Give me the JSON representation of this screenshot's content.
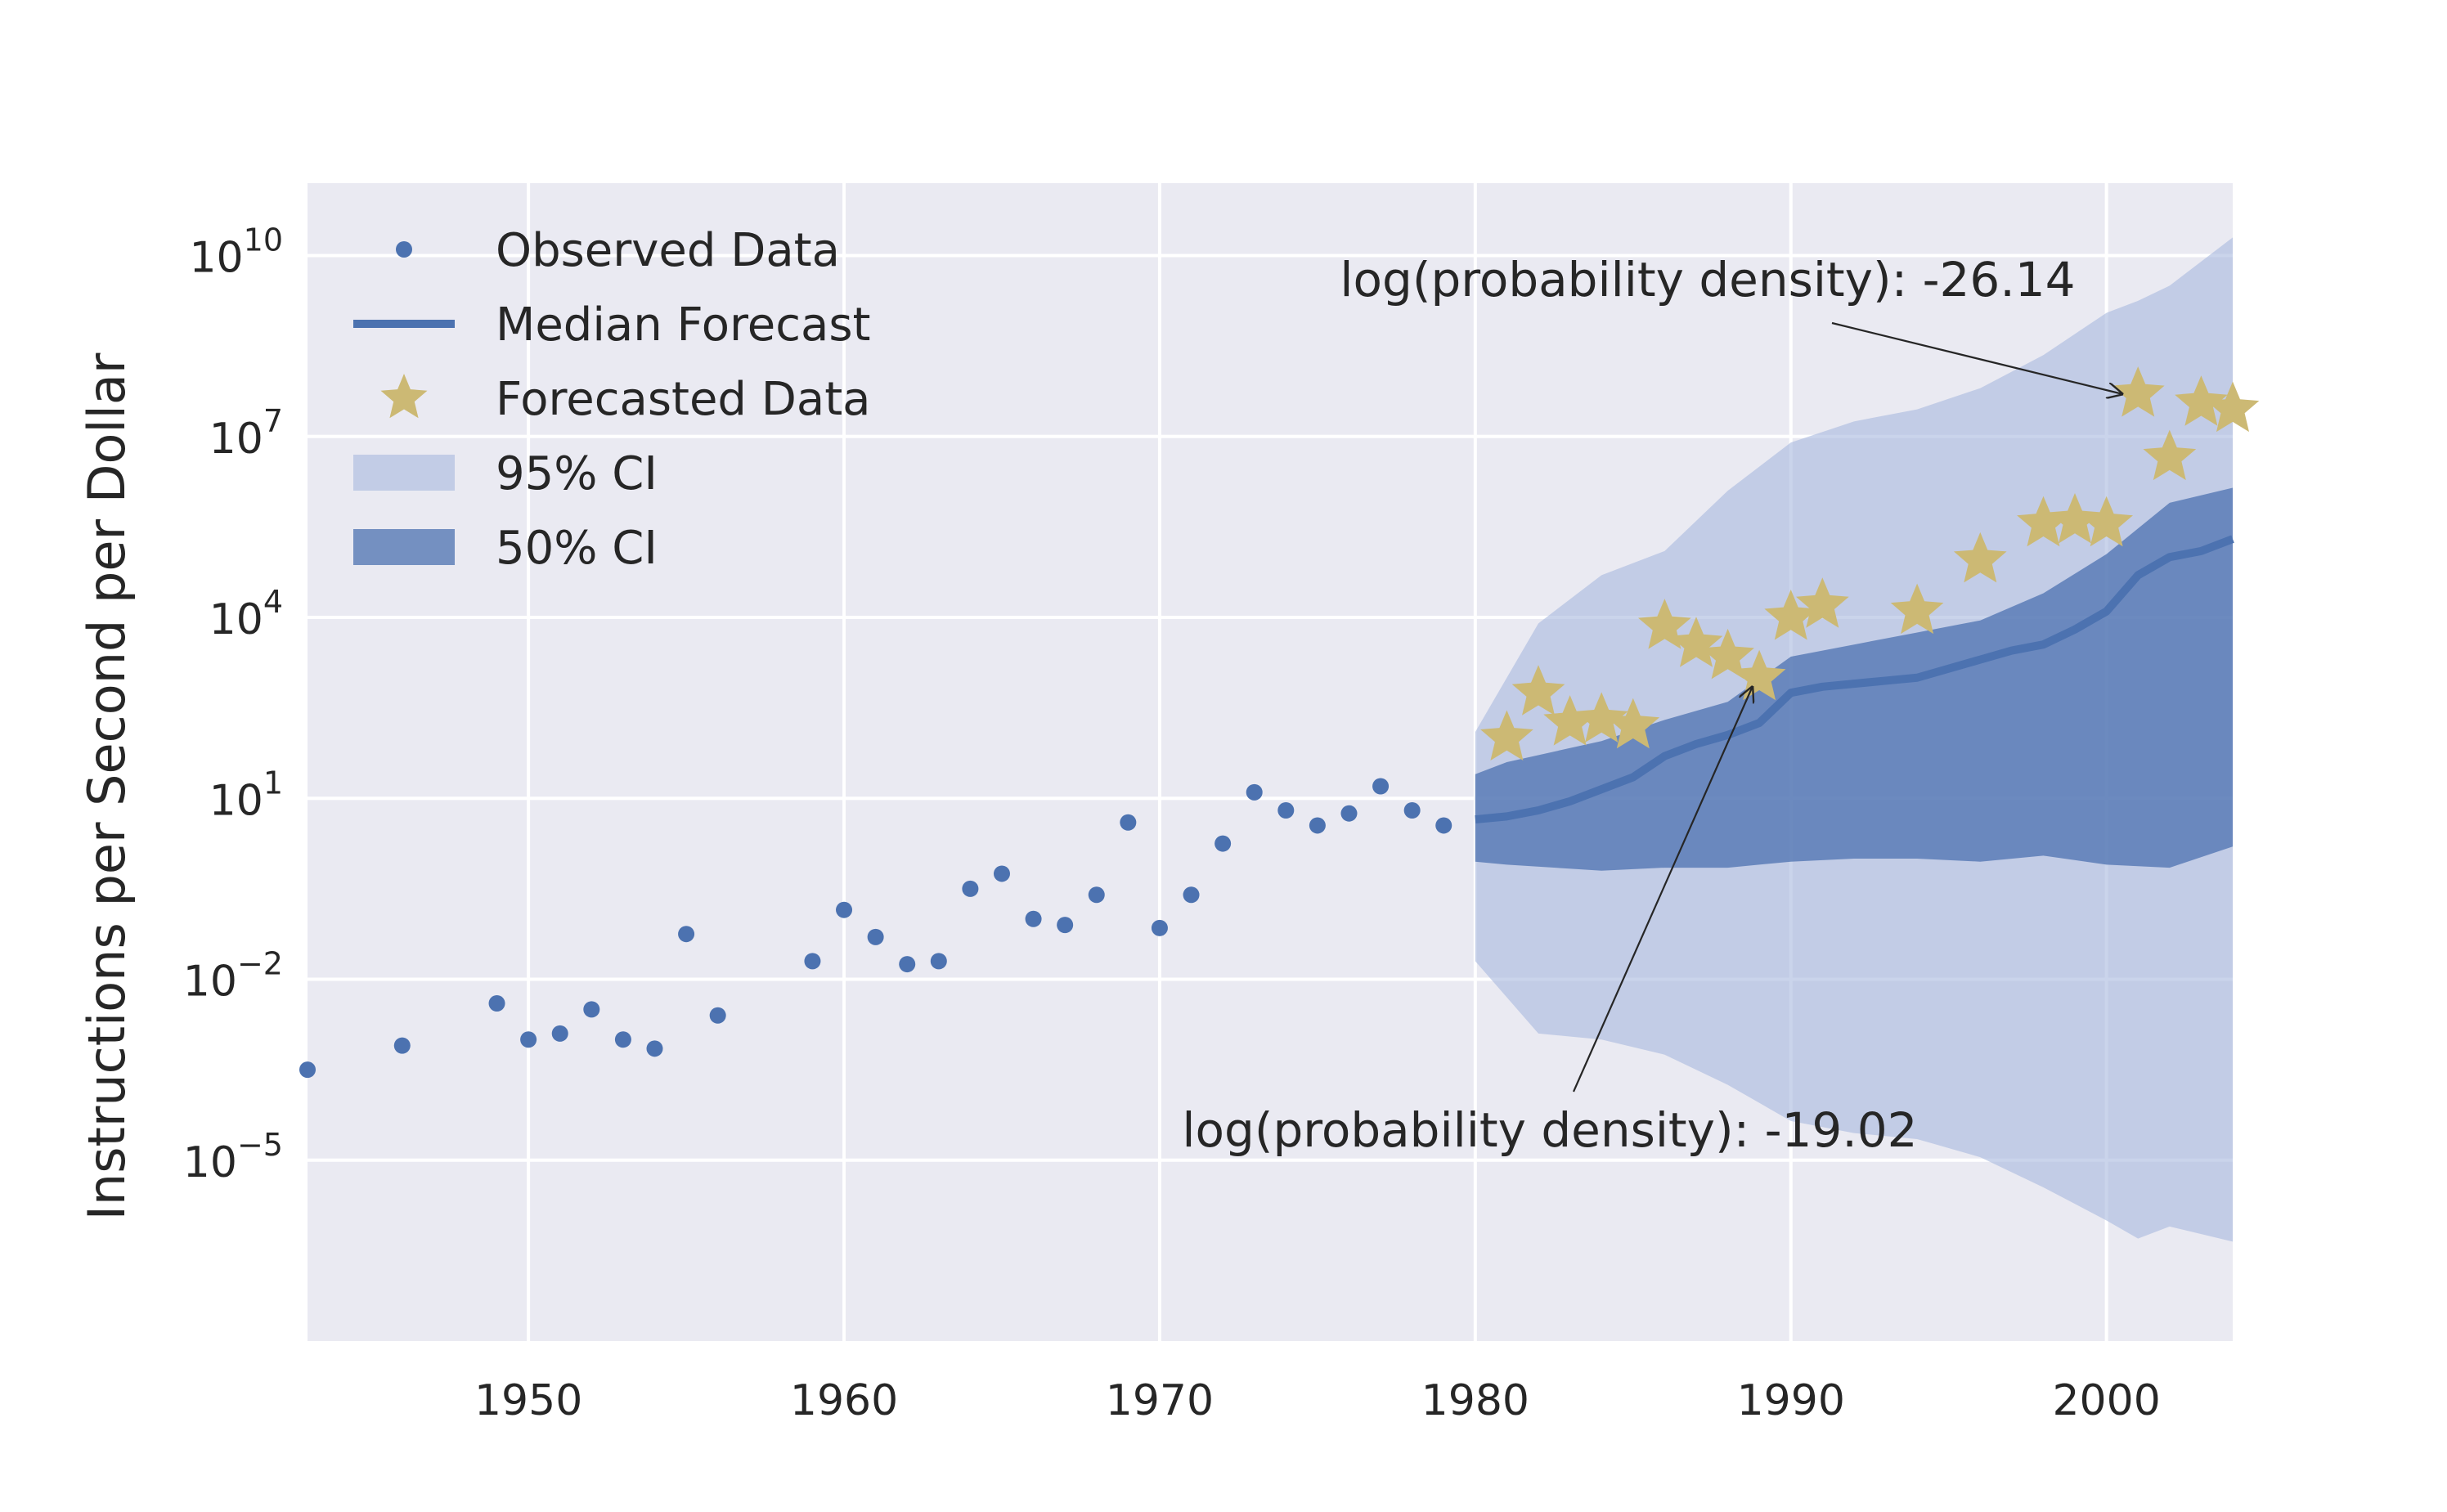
{
  "chart_data": {
    "type": "scatter",
    "ylabel": "Instructions per Second per Dollar",
    "xlabel": "",
    "title": "",
    "xlim": [
      1943,
      2004
    ],
    "yscale": "log",
    "ylim_log10": [
      -8,
      11.2
    ],
    "x_ticks": [
      "1950",
      "1960",
      "1970",
      "1980",
      "1990",
      "2000"
    ],
    "x_tick_values": [
      1950,
      1960,
      1970,
      1980,
      1990,
      2000
    ],
    "y_ticks": [
      {
        "base": "10",
        "exp": "10",
        "value_log10": 10
      },
      {
        "base": "10",
        "exp": "7",
        "value_log10": 7
      },
      {
        "base": "10",
        "exp": "4",
        "value_log10": 4
      },
      {
        "base": "10",
        "exp": "1",
        "value_log10": 1
      },
      {
        "base": "10",
        "exp": "−2",
        "value_log10": -2
      },
      {
        "base": "10",
        "exp": "−5",
        "value_log10": -5
      }
    ],
    "grid": true,
    "legend_position": "top-left",
    "legend": [
      {
        "key": "observed",
        "label": "Observed Data"
      },
      {
        "key": "median",
        "label": "Median Forecast"
      },
      {
        "key": "forecasted",
        "label": "Forecasted Data"
      },
      {
        "key": "ci95",
        "label": "95% CI"
      },
      {
        "key": "ci50",
        "label": "50% CI"
      }
    ],
    "colors": {
      "background": "#eaeaf2",
      "grid": "#ffffff",
      "observed": "#4c72b0",
      "median": "#4c72b0",
      "forecasted": "#ccb974",
      "ci95": "#a7b7dd",
      "ci50": "#4c72b0"
    },
    "observed_log10": [
      [
        1943,
        -3.5
      ],
      [
        1946,
        -3.1
      ],
      [
        1949,
        -2.4
      ],
      [
        1950,
        -3.0
      ],
      [
        1951,
        -2.9
      ],
      [
        1952,
        -2.5
      ],
      [
        1953,
        -3.0
      ],
      [
        1954,
        -3.15
      ],
      [
        1955,
        -1.25
      ],
      [
        1956,
        -2.6
      ],
      [
        1959,
        -1.7
      ],
      [
        1960,
        -0.85
      ],
      [
        1961,
        -1.3
      ],
      [
        1962,
        -1.75
      ],
      [
        1963,
        -1.7
      ],
      [
        1964,
        -0.5
      ],
      [
        1965,
        -0.25
      ],
      [
        1966,
        -1.0
      ],
      [
        1967,
        -1.1
      ],
      [
        1968,
        -0.6
      ],
      [
        1969,
        0.6
      ],
      [
        1970,
        -1.15
      ],
      [
        1971,
        -0.6
      ],
      [
        1972,
        0.25
      ],
      [
        1973,
        1.1
      ],
      [
        1974,
        0.8
      ],
      [
        1975,
        0.55
      ],
      [
        1976,
        0.75
      ],
      [
        1977,
        1.2
      ],
      [
        1978,
        0.8
      ],
      [
        1979,
        0.55
      ]
    ],
    "median_log10": [
      [
        1980,
        0.65
      ],
      [
        1981,
        0.7
      ],
      [
        1982,
        0.8
      ],
      [
        1983,
        0.95
      ],
      [
        1984,
        1.15
      ],
      [
        1985,
        1.35
      ],
      [
        1986,
        1.7
      ],
      [
        1987,
        1.9
      ],
      [
        1988,
        2.05
      ],
      [
        1989,
        2.25
      ],
      [
        1990,
        2.75
      ],
      [
        1991,
        2.85
      ],
      [
        1992,
        2.9
      ],
      [
        1993,
        2.95
      ],
      [
        1994,
        3.0
      ],
      [
        1996,
        3.3
      ],
      [
        1997,
        3.45
      ],
      [
        1998,
        3.55
      ],
      [
        1999,
        3.8
      ],
      [
        2000,
        4.1
      ],
      [
        2001,
        4.7
      ],
      [
        2002,
        5.0
      ],
      [
        2003,
        5.1
      ],
      [
        2004,
        5.3
      ]
    ],
    "forecasted_log10": [
      [
        1981,
        2.0
      ],
      [
        1982,
        2.75
      ],
      [
        1983,
        2.25
      ],
      [
        1984,
        2.3
      ],
      [
        1985,
        2.2
      ],
      [
        1986,
        3.85
      ],
      [
        1987,
        3.55
      ],
      [
        1988,
        3.35
      ],
      [
        1989,
        3.0
      ],
      [
        1990,
        4.0
      ],
      [
        1991,
        4.2
      ],
      [
        1994,
        4.1
      ],
      [
        1996,
        4.95
      ],
      [
        1998,
        5.55
      ],
      [
        1999,
        5.6
      ],
      [
        2000,
        5.55
      ],
      [
        2001,
        7.7
      ],
      [
        2002,
        6.65
      ],
      [
        2003,
        7.55
      ],
      [
        2004,
        7.45
      ]
    ],
    "ci95_log10": [
      {
        "x": 1980,
        "low": -1.7,
        "high": 2.1
      },
      {
        "x": 1982,
        "low": -2.9,
        "high": 3.9
      },
      {
        "x": 1984,
        "low": -3.0,
        "high": 4.7
      },
      {
        "x": 1986,
        "low": -3.25,
        "high": 5.1
      },
      {
        "x": 1988,
        "low": -3.75,
        "high": 6.1
      },
      {
        "x": 1990,
        "low": -4.35,
        "high": 6.9
      },
      {
        "x": 1992,
        "low": -4.55,
        "high": 7.25
      },
      {
        "x": 1994,
        "low": -4.65,
        "high": 7.45
      },
      {
        "x": 1996,
        "low": -4.95,
        "high": 7.8
      },
      {
        "x": 1998,
        "low": -5.45,
        "high": 8.35
      },
      {
        "x": 2000,
        "low": -6.0,
        "high": 9.05
      },
      {
        "x": 2001,
        "low": -6.3,
        "high": 9.25
      },
      {
        "x": 2002,
        "low": -6.1,
        "high": 9.5
      },
      {
        "x": 2004,
        "low": -6.35,
        "high": 10.3
      }
    ],
    "ci50_log10": [
      {
        "x": 1980,
        "low": -0.05,
        "high": 1.4
      },
      {
        "x": 1981,
        "low": -0.1,
        "high": 1.6
      },
      {
        "x": 1984,
        "low": -0.2,
        "high": 1.95
      },
      {
        "x": 1986,
        "low": -0.15,
        "high": 2.3
      },
      {
        "x": 1988,
        "low": -0.15,
        "high": 2.6
      },
      {
        "x": 1990,
        "low": -0.05,
        "high": 3.35
      },
      {
        "x": 1992,
        "low": 0.0,
        "high": 3.55
      },
      {
        "x": 1994,
        "low": 0.0,
        "high": 3.75
      },
      {
        "x": 1996,
        "low": -0.05,
        "high": 3.95
      },
      {
        "x": 1998,
        "low": 0.05,
        "high": 4.4
      },
      {
        "x": 2000,
        "low": -0.1,
        "high": 5.05
      },
      {
        "x": 2002,
        "low": -0.15,
        "high": 5.9
      },
      {
        "x": 2004,
        "low": 0.2,
        "high": 6.15
      }
    ],
    "annotations": [
      {
        "text": "log(probability density): -26.14",
        "point": [
          2001,
          7.7
        ]
      },
      {
        "text": "log(probability density): -19.02",
        "point": [
          1989,
          3.0
        ]
      }
    ]
  }
}
